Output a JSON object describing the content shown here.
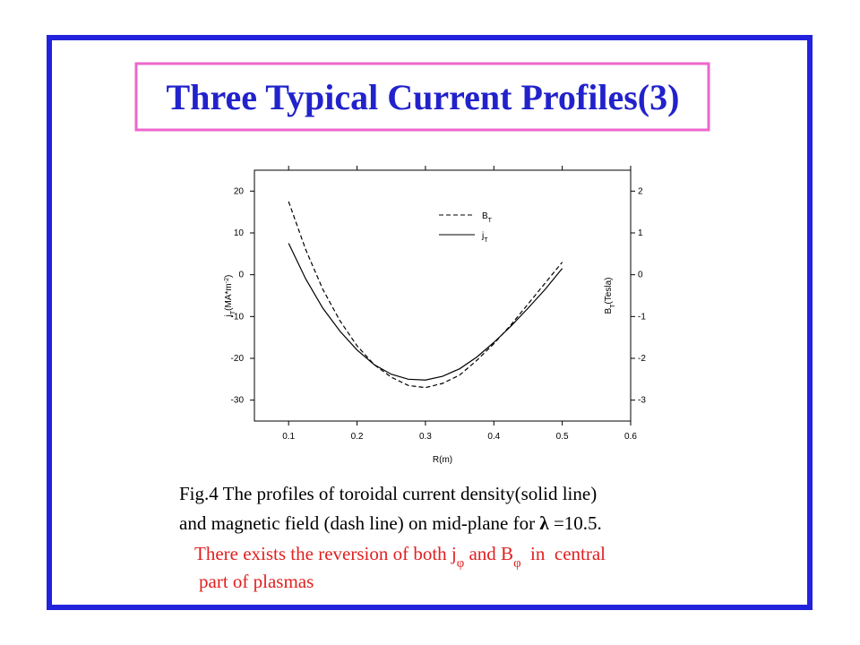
{
  "title": "Three Typical Current Profiles(3)",
  "chart_data": {
    "type": "line",
    "xlabel": [
      {
        "text": "R(m)"
      }
    ],
    "ylabel": [
      {
        "text": "j"
      },
      {
        "text": "T",
        "sub": true
      },
      {
        "text": "(MA*m"
      },
      {
        "text": "-2",
        "sup": true
      },
      {
        "text": ")"
      }
    ],
    "y2label": [
      {
        "text": "B"
      },
      {
        "text": "T",
        "sub": true
      },
      {
        "text": "(Tesla)"
      }
    ],
    "x": [
      0.1,
      0.125,
      0.15,
      0.175,
      0.2,
      0.225,
      0.25,
      0.275,
      0.3,
      0.325,
      0.35,
      0.375,
      0.4,
      0.425,
      0.45,
      0.475,
      0.5
    ],
    "xlim": [
      0.05,
      0.6
    ],
    "xticks": [
      0.1,
      0.2,
      0.3,
      0.4,
      0.5,
      0.6
    ],
    "ylim": [
      -35,
      25
    ],
    "yticks": [
      -30,
      -20,
      -10,
      0,
      10,
      20
    ],
    "y2lim": [
      -3.5,
      2.5
    ],
    "y2ticks": [
      -3,
      -2,
      -1,
      0,
      1,
      2
    ],
    "series": [
      {
        "name": [
          {
            "text": "B"
          },
          {
            "text": "T",
            "sub": true
          }
        ],
        "color": "#000000",
        "dash": "dashed",
        "axis": "y2",
        "values": [
          1.75,
          0.6,
          -0.35,
          -1.1,
          -1.7,
          -2.15,
          -2.45,
          -2.65,
          -2.7,
          -2.6,
          -2.4,
          -2.05,
          -1.65,
          -1.2,
          -0.7,
          -0.2,
          0.3
        ]
      },
      {
        "name": [
          {
            "text": "j"
          },
          {
            "text": "T",
            "sub": true
          }
        ],
        "color": "#000000",
        "dash": "solid",
        "values": [
          7.5,
          -1,
          -8,
          -13.5,
          -18,
          -21.5,
          -23.8,
          -25,
          -25.2,
          -24.3,
          -22.5,
          -19.7,
          -16.2,
          -12.3,
          -8,
          -3.5,
          1.5
        ]
      }
    ]
  },
  "caption": {
    "lines": [
      [
        {
          "text": "Fig.4 The profiles of toroidal current density(solid line)"
        }
      ],
      [
        {
          "text": "and magnetic field (dash line) on mid-plane for "
        },
        {
          "text": "λ",
          "bold": true
        },
        {
          "text": " =10.5."
        }
      ]
    ]
  },
  "note": {
    "lines": [
      [
        {
          "text": "There exists the reversion of both j"
        },
        {
          "text": "φ",
          "sub": true
        },
        {
          "text": " and B"
        },
        {
          "text": "φ",
          "sub": true
        },
        {
          "text": "  in  central"
        }
      ],
      [
        {
          "text": "part of plasmas"
        }
      ]
    ]
  }
}
